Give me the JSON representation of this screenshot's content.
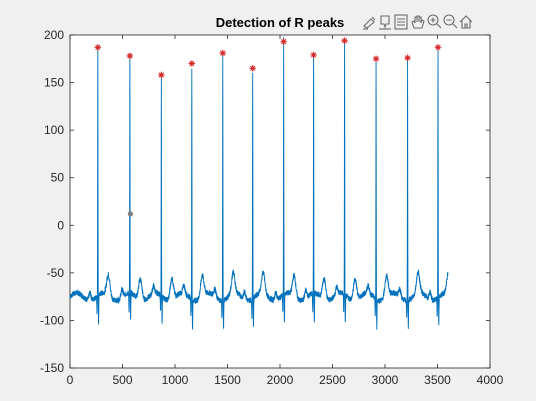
{
  "window": {
    "background": "#f0f0f0"
  },
  "toolbar": {
    "icons": [
      "brush-icon",
      "data-tips-icon",
      "legend-icon",
      "pan-icon",
      "zoom-in-icon",
      "zoom-out-icon",
      "home-icon"
    ]
  },
  "chart_data": {
    "type": "line",
    "title": "Detection of R peaks",
    "xlabel": "",
    "ylabel": "",
    "xlim": [
      0,
      4000
    ],
    "ylim": [
      -150,
      200
    ],
    "xticks": [
      0,
      500,
      1000,
      1500,
      2000,
      2500,
      3000,
      3500,
      4000
    ],
    "yticks": [
      -150,
      -100,
      -50,
      0,
      50,
      100,
      150,
      200
    ],
    "grid": false,
    "line_color": "#0072bd",
    "marker_color": "#d62728",
    "series": [
      {
        "kind": "ecg-signal",
        "x_range": [
          0,
          3600
        ],
        "baseline": -75
      },
      {
        "kind": "r-peak-markers",
        "marker": "asterisk",
        "points": [
          {
            "x": 265,
            "y": 187
          },
          {
            "x": 570,
            "y": 178
          },
          {
            "x": 870,
            "y": 158
          },
          {
            "x": 1160,
            "y": 170
          },
          {
            "x": 1455,
            "y": 181
          },
          {
            "x": 1740,
            "y": 165
          },
          {
            "x": 2035,
            "y": 193
          },
          {
            "x": 2320,
            "y": 179
          },
          {
            "x": 2615,
            "y": 194
          },
          {
            "x": 2915,
            "y": 175
          },
          {
            "x": 3215,
            "y": 176
          },
          {
            "x": 3505,
            "y": 187
          }
        ]
      }
    ],
    "annotation_point": {
      "x": 575,
      "y": 12,
      "color": "#7f7f7f"
    }
  }
}
